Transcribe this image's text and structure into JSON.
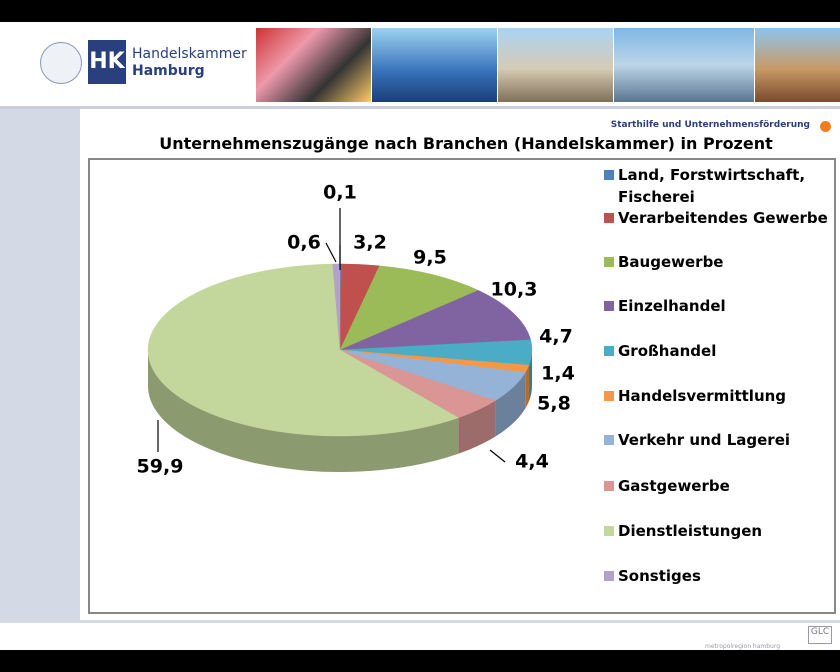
{
  "header": {
    "logo_short": "HK",
    "logo_line1": "Handelskammer",
    "logo_line2": "Hamburg",
    "tagline": "Starthilfe und Unternehmensförderung"
  },
  "footer": {
    "region": "metropolregion hamburg",
    "badge": "GLC"
  },
  "chart_data": {
    "type": "pie",
    "title": "Unternehmenszugänge nach Branchen (Handelskammer) in Prozent",
    "categories": [
      "Land, Forstwirtschaft, Fischerei",
      "Verarbeitendes Gewerbe",
      "Baugewerbe",
      "Einzelhandel",
      "Großhandel",
      "Handelsvermittlung",
      "Verkehr und Lagerei",
      "Gastgewerbe",
      "Dienstleistungen",
      "Sonstiges"
    ],
    "values": [
      0.1,
      3.2,
      9.5,
      10.3,
      4.7,
      1.4,
      5.8,
      4.4,
      59.9,
      0.6
    ],
    "value_labels": [
      "0,1",
      "3,2",
      "9,5",
      "10,3",
      "4,7",
      "1,4",
      "5,8",
      "4,4",
      "59,9",
      "0,6"
    ],
    "colors": [
      "#4f81bd",
      "#c0504d",
      "#9bbb59",
      "#8064a2",
      "#4bacc6",
      "#f79646",
      "#95b3d7",
      "#d99694",
      "#c3d69b",
      "#b3a2c7"
    ]
  }
}
